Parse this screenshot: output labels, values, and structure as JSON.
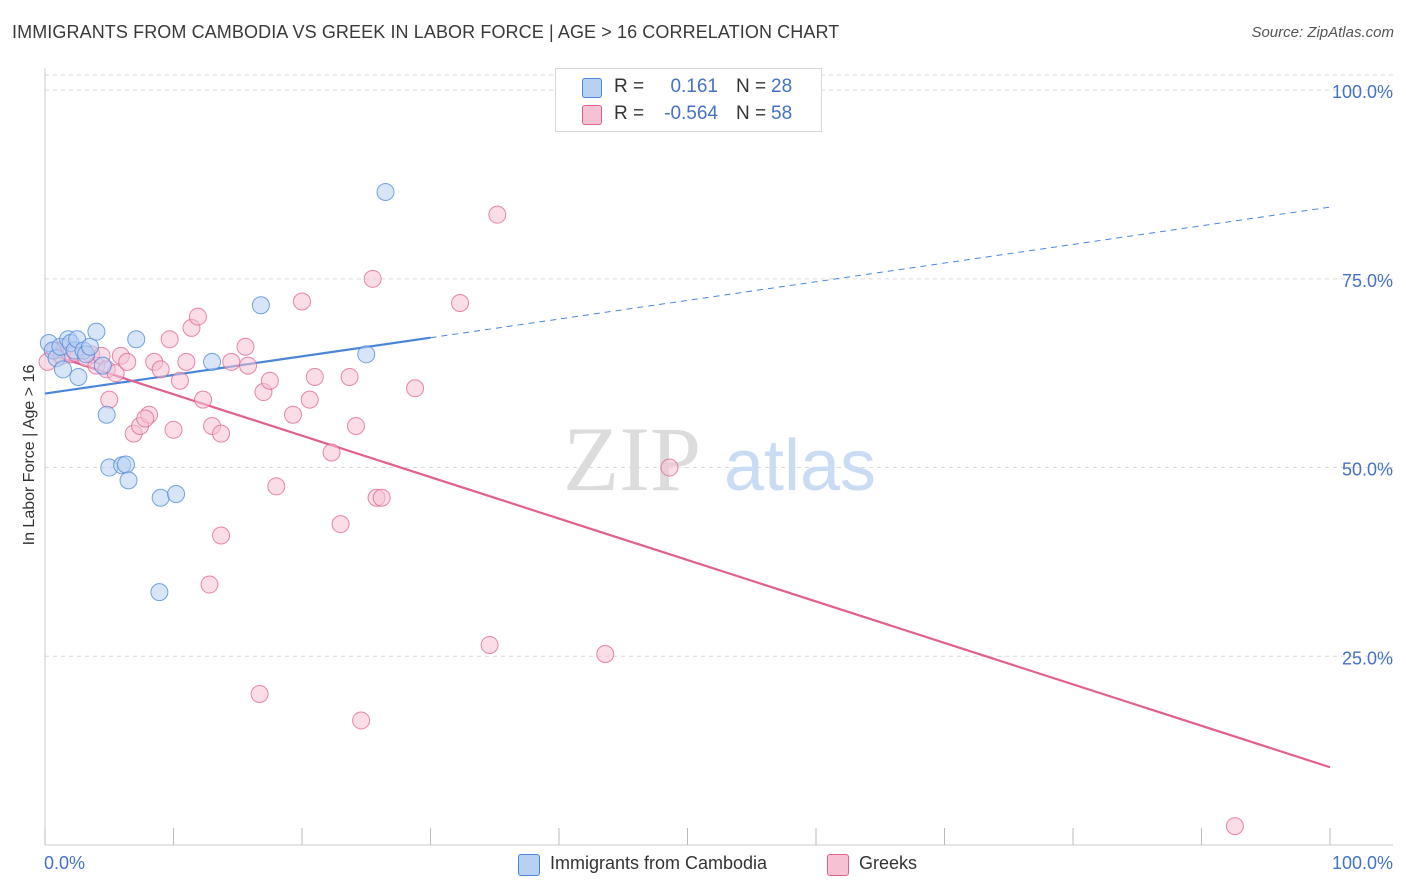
{
  "title": "IMMIGRANTS FROM CAMBODIA VS GREEK IN LABOR FORCE | AGE > 16 CORRELATION CHART",
  "source": "Source: ZipAtlas.com",
  "watermark": {
    "zip": "ZIP",
    "atlas": "atlas"
  },
  "colors": {
    "blue": "#4a86d8",
    "blue_fill": "#b8d0f2",
    "pink": "#e06090",
    "pink_fill": "#f6c1d3",
    "tick": "#4472c4",
    "grid": "#d9d9d9"
  },
  "legend": {
    "rows": [
      {
        "r_label": "R =",
        "r_value": "0.161",
        "n_label": "N =",
        "n_value": "28"
      },
      {
        "r_label": "R =",
        "r_value": "-0.564",
        "n_label": "N =",
        "n_value": "58"
      }
    ]
  },
  "bottom_legend": {
    "series1": "Immigrants from Cambodia",
    "series2": "Greeks"
  },
  "chart_data": {
    "type": "scatter",
    "title": "IMMIGRANTS FROM CAMBODIA VS GREEK IN LABOR FORCE | AGE > 16 CORRELATION CHART",
    "xlabel": "",
    "ylabel": "In Labor Force | Age > 16",
    "xlim": [
      0,
      100
    ],
    "ylim": [
      0,
      102
    ],
    "x_tick_labels": [
      "0.0%",
      "100.0%"
    ],
    "y_ticks": [
      25,
      50,
      75,
      100
    ],
    "y_tick_labels": [
      "25.0%",
      "50.0%",
      "75.0%",
      "100.0%"
    ],
    "grid": true,
    "series": [
      {
        "name": "Immigrants from Cambodia",
        "color": "#4a86d8",
        "points": [
          [
            0.3,
            66.5
          ],
          [
            0.6,
            65.5
          ],
          [
            0.9,
            64.5
          ],
          [
            1.2,
            66.0
          ],
          [
            1.4,
            63.0
          ],
          [
            1.8,
            67.0
          ],
          [
            2.0,
            66.5
          ],
          [
            2.3,
            65.5
          ],
          [
            2.5,
            67.0
          ],
          [
            3.0,
            65.5
          ],
          [
            3.2,
            65.0
          ],
          [
            3.5,
            66.0
          ],
          [
            4.0,
            68.0
          ],
          [
            4.5,
            63.5
          ],
          [
            2.6,
            62.0
          ],
          [
            4.8,
            57.0
          ],
          [
            7.1,
            67.0
          ],
          [
            5.0,
            50.0
          ],
          [
            6.0,
            50.3
          ],
          [
            6.3,
            50.4
          ],
          [
            6.5,
            48.3
          ],
          [
            9.0,
            46.0
          ],
          [
            10.2,
            46.5
          ],
          [
            8.9,
            33.5
          ],
          [
            13.0,
            64.0
          ],
          [
            16.8,
            71.5
          ],
          [
            25.0,
            65.0
          ],
          [
            26.5,
            86.5
          ]
        ],
        "trend": {
          "x": [
            0,
            30
          ],
          "y": [
            59.8,
            67.2
          ],
          "dashed_extension_to": [
            100,
            84.5
          ]
        }
      },
      {
        "name": "Greeks",
        "color": "#e06090",
        "points": [
          [
            0.2,
            64.0
          ],
          [
            0.8,
            65.5
          ],
          [
            1.3,
            64.8
          ],
          [
            1.6,
            66.0
          ],
          [
            2.0,
            65.0
          ],
          [
            2.4,
            65.2
          ],
          [
            3.2,
            64.5
          ],
          [
            3.6,
            65.0
          ],
          [
            4.0,
            63.5
          ],
          [
            4.4,
            64.8
          ],
          [
            4.8,
            63.0
          ],
          [
            5.0,
            59.0
          ],
          [
            5.5,
            62.5
          ],
          [
            5.9,
            64.8
          ],
          [
            6.4,
            64.0
          ],
          [
            6.9,
            54.5
          ],
          [
            7.4,
            55.5
          ],
          [
            8.1,
            57.0
          ],
          [
            7.8,
            56.5
          ],
          [
            8.5,
            64.0
          ],
          [
            9.0,
            63.0
          ],
          [
            9.7,
            67.0
          ],
          [
            10.0,
            55.0
          ],
          [
            10.5,
            61.5
          ],
          [
            11.0,
            64.0
          ],
          [
            11.4,
            68.5
          ],
          [
            11.9,
            70.0
          ],
          [
            12.3,
            59.0
          ],
          [
            13.0,
            55.5
          ],
          [
            13.7,
            54.5
          ],
          [
            14.5,
            64.0
          ],
          [
            15.6,
            66.0
          ],
          [
            15.8,
            63.5
          ],
          [
            17.0,
            60.0
          ],
          [
            17.5,
            61.5
          ],
          [
            18.0,
            47.5
          ],
          [
            19.3,
            57.0
          ],
          [
            20.0,
            72.0
          ],
          [
            20.6,
            59.0
          ],
          [
            21.0,
            62.0
          ],
          [
            22.3,
            52.0
          ],
          [
            23.0,
            42.5
          ],
          [
            23.7,
            62.0
          ],
          [
            24.2,
            55.5
          ],
          [
            25.5,
            75.0
          ],
          [
            25.8,
            46.0
          ],
          [
            26.2,
            46.0
          ],
          [
            28.8,
            60.5
          ],
          [
            32.3,
            71.8
          ],
          [
            34.6,
            26.5
          ],
          [
            35.2,
            83.5
          ],
          [
            43.6,
            25.3
          ],
          [
            48.6,
            50.0
          ],
          [
            13.7,
            41.0
          ],
          [
            12.8,
            34.5
          ],
          [
            16.7,
            20.0
          ],
          [
            24.6,
            16.5
          ],
          [
            92.6,
            2.5
          ]
        ],
        "trend": {
          "x": [
            0,
            100
          ],
          "y": [
            65.2,
            10.3
          ]
        }
      }
    ]
  }
}
